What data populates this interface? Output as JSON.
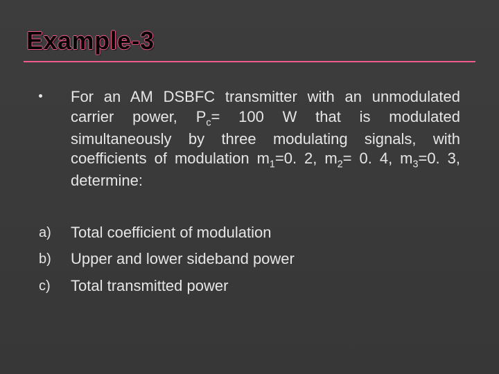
{
  "slide": {
    "title": "Example-3",
    "background_gradient": [
      "#3d3d3d",
      "#373737"
    ],
    "accent_color": "#f05a8c",
    "text_color": "#e6e6e6",
    "title_fontsize": 36,
    "body_fontsize": 22,
    "problem_html": "For an AM DSBFC transmitter with an unmodulated carrier power, P<sub>c</sub>= 100 W that is modulated simultaneously by three modulating signals, with coefficients of modulation m<sub>1</sub>=0. 2, m<sub>2</sub>= 0. 4, m<sub>3</sub>=0. 3, determine:",
    "items": [
      {
        "marker": "a)",
        "text": "Total coefficient of modulation"
      },
      {
        "marker": "b)",
        "text": "Upper and lower sideband power"
      },
      {
        "marker": "c)",
        "text": "Total transmitted power"
      }
    ]
  }
}
